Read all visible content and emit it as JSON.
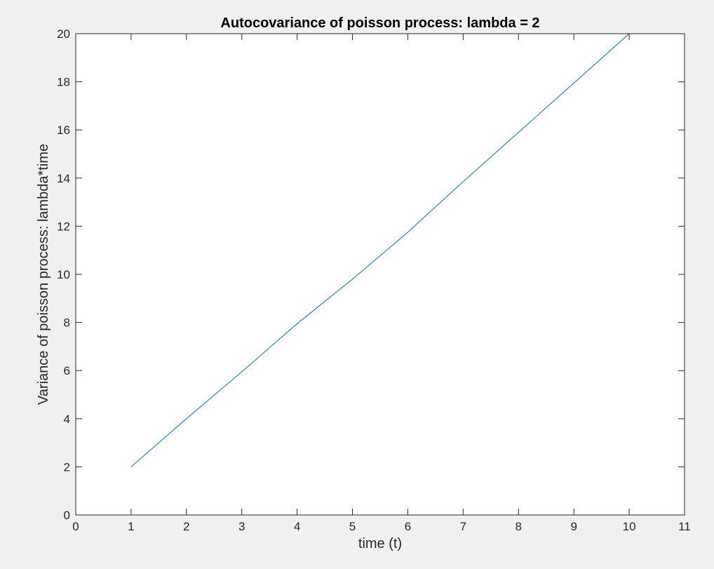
{
  "chart_data": {
    "type": "line",
    "title": "Autocovariance of poisson process: lambda = 2",
    "xlabel": "time (t)",
    "ylabel": "Variance  of poisson process: lambda*time",
    "xlim": [
      0,
      11
    ],
    "ylim": [
      0,
      20
    ],
    "xticks": [
      0,
      1,
      2,
      3,
      4,
      5,
      6,
      7,
      8,
      9,
      10,
      11
    ],
    "yticks": [
      0,
      2,
      4,
      6,
      8,
      10,
      12,
      14,
      16,
      18,
      20
    ],
    "grid": false,
    "series": [
      {
        "color": "#0072bd",
        "x": [
          1,
          2,
          3,
          4,
          5,
          6,
          7,
          8,
          9,
          10
        ],
        "y": [
          2,
          4,
          5.95,
          7.95,
          9.8,
          11.75,
          13.85,
          15.9,
          17.95,
          20
        ]
      }
    ]
  }
}
